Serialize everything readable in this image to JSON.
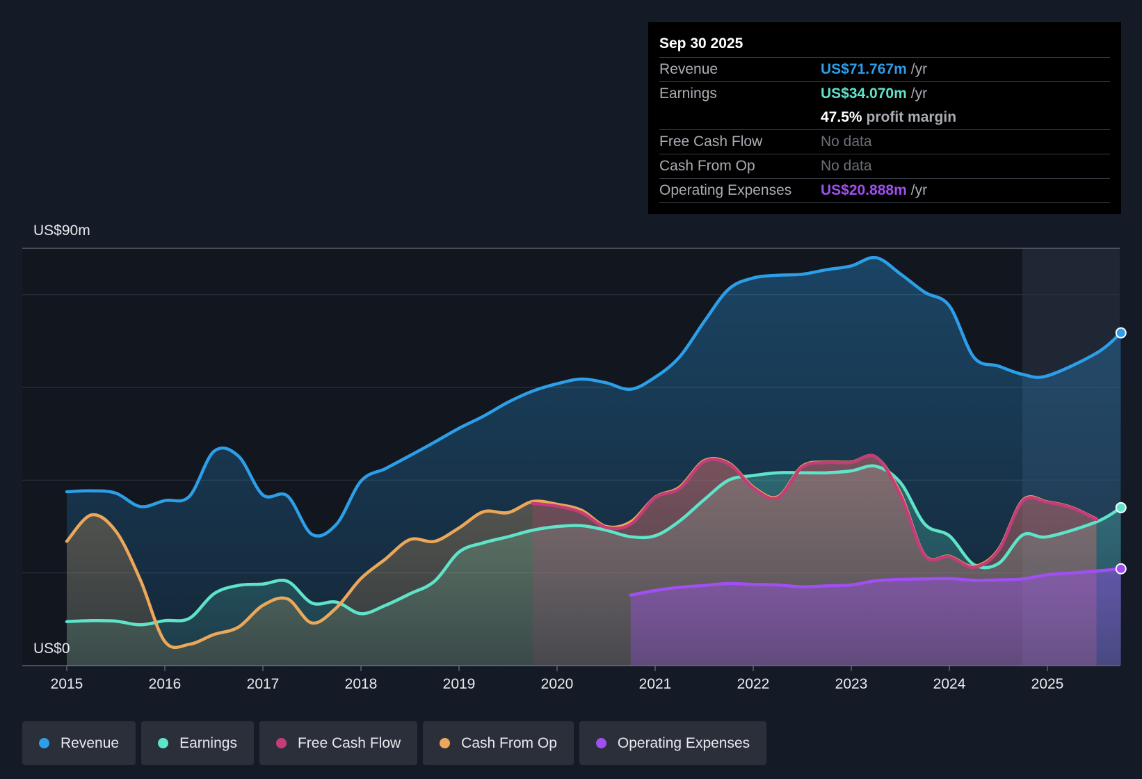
{
  "tooltip": {
    "date": "Sep 30 2025",
    "rows": [
      {
        "label": "Revenue",
        "value": "US$71.767m",
        "unit": "/yr",
        "color": "#2d9ee8"
      },
      {
        "label": "Earnings",
        "value": "US$34.070m",
        "unit": "/yr",
        "color": "#5fe3c9"
      },
      {
        "label": "",
        "value": "47.5%",
        "unit": "profit margin",
        "color": "#ffffff"
      },
      {
        "label": "Free Cash Flow",
        "value": "No data"
      },
      {
        "label": "Cash From Op",
        "value": "No data"
      },
      {
        "label": "Operating Expenses",
        "value": "US$20.888m",
        "unit": "/yr",
        "color": "#a04ff0"
      }
    ]
  },
  "axis": {
    "top_label": "US$90m",
    "bottom_label": "US$0"
  },
  "legend": [
    {
      "label": "Revenue",
      "color": "#2d9ee8"
    },
    {
      "label": "Earnings",
      "color": "#5fe3c9"
    },
    {
      "label": "Free Cash Flow",
      "color": "#c43c79"
    },
    {
      "label": "Cash From Op",
      "color": "#eba85a"
    },
    {
      "label": "Operating Expenses",
      "color": "#a04ff0"
    }
  ],
  "chart_data": {
    "type": "area",
    "title": "",
    "xlabel": "",
    "ylabel": "",
    "ylim": [
      0,
      90
    ],
    "xlim": [
      2015,
      2025.75
    ],
    "x_ticks": [
      "2015",
      "2016",
      "2017",
      "2018",
      "2019",
      "2020",
      "2021",
      "2022",
      "2023",
      "2024",
      "2025"
    ],
    "gridlines_y": [
      20,
      40,
      60,
      80,
      90
    ],
    "forecast_start": 2024.75,
    "series": [
      {
        "name": "Revenue",
        "color": "#2d9ee8",
        "points": [
          [
            2015,
            37.5
          ],
          [
            2015.25,
            37.7
          ],
          [
            2015.5,
            37.2
          ],
          [
            2015.75,
            34.3
          ],
          [
            2016,
            35.6
          ],
          [
            2016.25,
            36.5
          ],
          [
            2016.5,
            46.2
          ],
          [
            2016.75,
            45.2
          ],
          [
            2017,
            36.8
          ],
          [
            2017.25,
            36.6
          ],
          [
            2017.5,
            28.3
          ],
          [
            2017.75,
            30.5
          ],
          [
            2018,
            39.8
          ],
          [
            2018.25,
            42.5
          ],
          [
            2018.5,
            45.3
          ],
          [
            2018.75,
            48.2
          ],
          [
            2019,
            51.2
          ],
          [
            2019.25,
            53.8
          ],
          [
            2019.5,
            56.8
          ],
          [
            2019.75,
            59.2
          ],
          [
            2020,
            60.8
          ],
          [
            2020.25,
            61.8
          ],
          [
            2020.5,
            61.0
          ],
          [
            2020.75,
            59.6
          ],
          [
            2021,
            62.2
          ],
          [
            2021.25,
            66.6
          ],
          [
            2021.5,
            74.2
          ],
          [
            2021.75,
            81.2
          ],
          [
            2022,
            83.6
          ],
          [
            2022.25,
            84.2
          ],
          [
            2022.5,
            84.4
          ],
          [
            2022.75,
            85.4
          ],
          [
            2023,
            86.2
          ],
          [
            2023.25,
            88.0
          ],
          [
            2023.5,
            84.5
          ],
          [
            2023.75,
            80.5
          ],
          [
            2024,
            77.6
          ],
          [
            2024.25,
            66.5
          ],
          [
            2024.5,
            64.6
          ],
          [
            2024.75,
            62.8
          ],
          [
            2025,
            62.5
          ],
          [
            2025.5,
            67.4
          ],
          [
            2025.75,
            71.767
          ]
        ]
      },
      {
        "name": "Earnings",
        "color": "#5fe3c9",
        "points": [
          [
            2015,
            9.5
          ],
          [
            2015.25,
            9.7
          ],
          [
            2015.5,
            9.6
          ],
          [
            2015.75,
            8.8
          ],
          [
            2016,
            9.7
          ],
          [
            2016.25,
            10.2
          ],
          [
            2016.5,
            15.5
          ],
          [
            2016.75,
            17.3
          ],
          [
            2017,
            17.6
          ],
          [
            2017.25,
            18.2
          ],
          [
            2017.5,
            13.5
          ],
          [
            2017.75,
            13.7
          ],
          [
            2018,
            11.2
          ],
          [
            2018.25,
            13.0
          ],
          [
            2018.5,
            15.5
          ],
          [
            2018.75,
            18.2
          ],
          [
            2019,
            24.5
          ],
          [
            2019.25,
            26.5
          ],
          [
            2019.5,
            27.8
          ],
          [
            2019.75,
            29.2
          ],
          [
            2020,
            30.0
          ],
          [
            2020.25,
            30.2
          ],
          [
            2020.5,
            29.2
          ],
          [
            2020.75,
            27.8
          ],
          [
            2021,
            28.0
          ],
          [
            2021.25,
            31.2
          ],
          [
            2021.5,
            35.8
          ],
          [
            2021.75,
            40.0
          ],
          [
            2022,
            41.0
          ],
          [
            2022.25,
            41.6
          ],
          [
            2022.5,
            41.6
          ],
          [
            2022.75,
            41.6
          ],
          [
            2023,
            42.0
          ],
          [
            2023.25,
            43.0
          ],
          [
            2023.5,
            39.5
          ],
          [
            2023.75,
            30.5
          ],
          [
            2024,
            28.0
          ],
          [
            2024.25,
            21.8
          ],
          [
            2024.5,
            22.0
          ],
          [
            2024.75,
            28.2
          ],
          [
            2025,
            27.8
          ],
          [
            2025.5,
            31.0
          ],
          [
            2025.75,
            34.07
          ]
        ]
      },
      {
        "name": "Free Cash Flow",
        "color": "#c43c79",
        "points": [
          [
            2019.75,
            35.0
          ],
          [
            2020,
            34.4
          ],
          [
            2020.25,
            33.0
          ],
          [
            2020.5,
            29.8
          ],
          [
            2020.75,
            30.5
          ],
          [
            2021,
            36.2
          ],
          [
            2021.25,
            38.2
          ],
          [
            2021.5,
            44.0
          ],
          [
            2021.75,
            43.5
          ],
          [
            2022,
            38.3
          ],
          [
            2022.25,
            36.2
          ],
          [
            2022.5,
            42.8
          ],
          [
            2022.75,
            43.8
          ],
          [
            2023,
            43.8
          ],
          [
            2023.25,
            45.0
          ],
          [
            2023.5,
            36.8
          ],
          [
            2023.75,
            23.7
          ],
          [
            2024,
            23.5
          ],
          [
            2024.25,
            21.2
          ],
          [
            2024.5,
            24.8
          ],
          [
            2024.75,
            35.5
          ],
          [
            2025,
            35.2
          ],
          [
            2025.25,
            34.0
          ],
          [
            2025.5,
            31.5
          ]
        ]
      },
      {
        "name": "Cash From Op",
        "color": "#eba85a",
        "points": [
          [
            2015,
            26.8
          ],
          [
            2015.25,
            32.5
          ],
          [
            2015.5,
            29.0
          ],
          [
            2015.75,
            18.5
          ],
          [
            2016,
            5.2
          ],
          [
            2016.25,
            4.6
          ],
          [
            2016.5,
            6.7
          ],
          [
            2016.75,
            8.3
          ],
          [
            2017,
            13.0
          ],
          [
            2017.25,
            14.4
          ],
          [
            2017.5,
            9.2
          ],
          [
            2017.75,
            12.5
          ],
          [
            2018,
            18.8
          ],
          [
            2018.25,
            23.0
          ],
          [
            2018.5,
            27.2
          ],
          [
            2018.75,
            26.8
          ],
          [
            2019,
            29.7
          ],
          [
            2019.25,
            33.2
          ],
          [
            2019.5,
            33.0
          ],
          [
            2019.75,
            35.4
          ],
          [
            2020,
            34.8
          ],
          [
            2020.25,
            33.5
          ],
          [
            2020.5,
            30.0
          ],
          [
            2020.75,
            31.0
          ],
          [
            2021,
            36.3
          ],
          [
            2021.25,
            38.5
          ],
          [
            2021.5,
            44.2
          ],
          [
            2021.75,
            43.7
          ],
          [
            2022,
            38.5
          ],
          [
            2022.25,
            36.4
          ],
          [
            2022.5,
            43.0
          ],
          [
            2022.75,
            43.9
          ],
          [
            2023,
            43.9
          ],
          [
            2023.25,
            45.0
          ],
          [
            2023.5,
            37.2
          ],
          [
            2023.75,
            23.8
          ],
          [
            2024,
            23.6
          ],
          [
            2024.25,
            21.4
          ],
          [
            2024.5,
            25.0
          ],
          [
            2024.75,
            35.7
          ],
          [
            2025,
            35.3
          ],
          [
            2025.25,
            34.1
          ],
          [
            2025.5,
            31.6
          ]
        ]
      },
      {
        "name": "Operating Expenses",
        "color": "#a04ff0",
        "points": [
          [
            2020.75,
            15.2
          ],
          [
            2021,
            16.2
          ],
          [
            2021.25,
            16.9
          ],
          [
            2021.5,
            17.3
          ],
          [
            2021.75,
            17.7
          ],
          [
            2022,
            17.5
          ],
          [
            2022.25,
            17.4
          ],
          [
            2022.5,
            17.0
          ],
          [
            2022.75,
            17.2
          ],
          [
            2023,
            17.4
          ],
          [
            2023.25,
            18.3
          ],
          [
            2023.5,
            18.6
          ],
          [
            2023.75,
            18.7
          ],
          [
            2024,
            18.8
          ],
          [
            2024.25,
            18.4
          ],
          [
            2024.5,
            18.5
          ],
          [
            2024.75,
            18.7
          ],
          [
            2025,
            19.6
          ],
          [
            2025.25,
            20.0
          ],
          [
            2025.5,
            20.4
          ],
          [
            2025.75,
            20.888
          ]
        ]
      }
    ]
  }
}
